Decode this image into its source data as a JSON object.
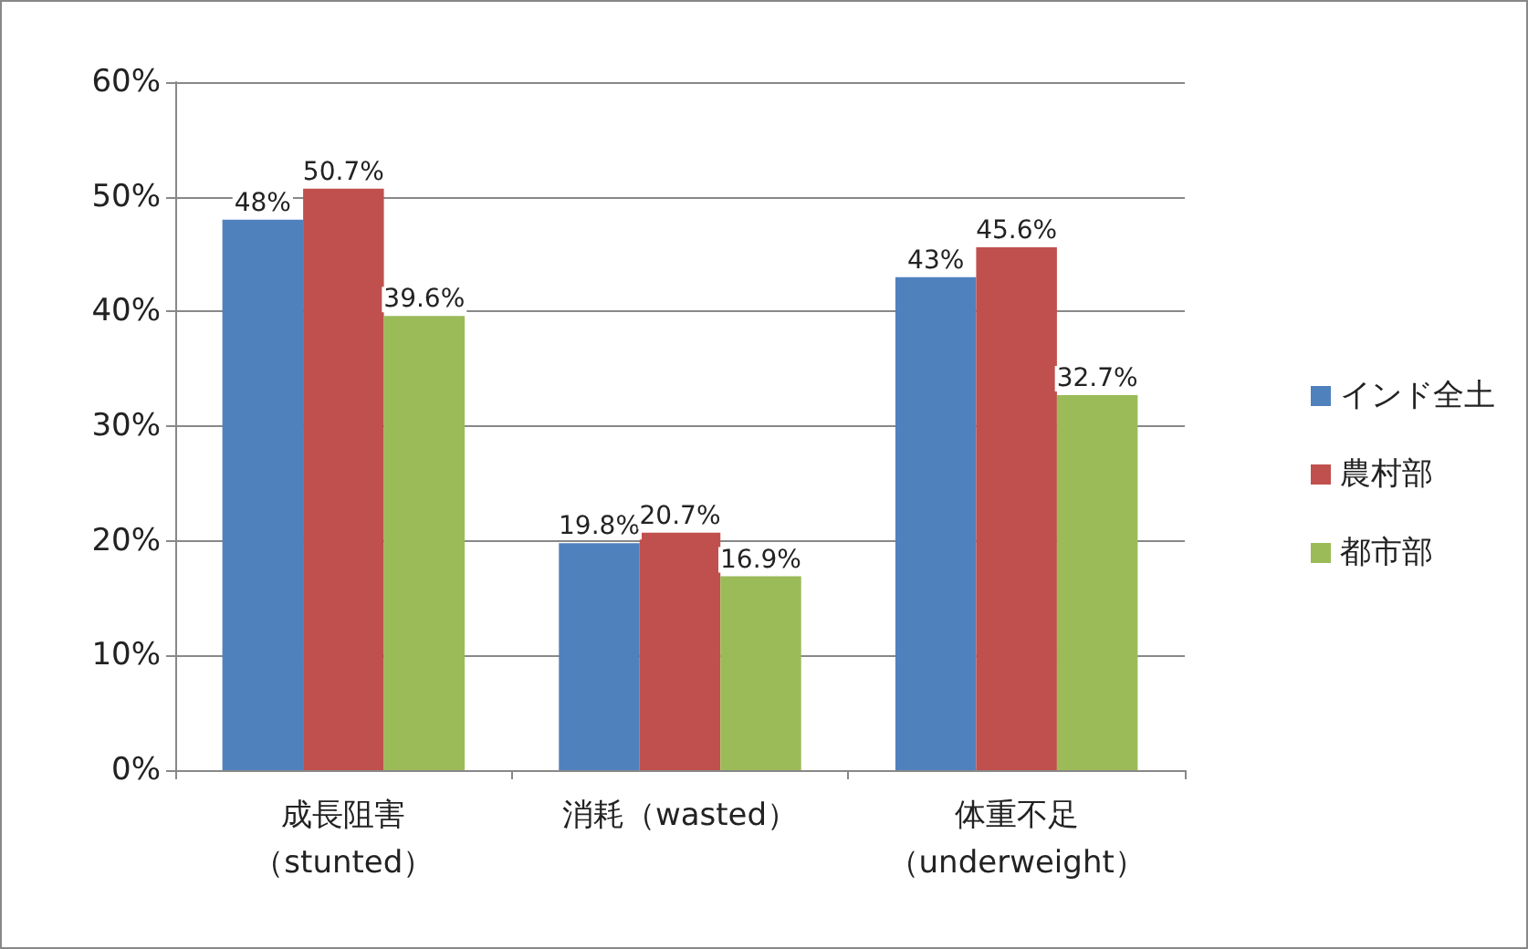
{
  "chart_data": {
    "type": "bar",
    "categories": [
      "成長阻害（stunted）",
      "消耗（wasted）",
      "体重不足（underweight）"
    ],
    "series": [
      {
        "name": "インド全土",
        "color": "#4f81bd",
        "values": [
          48,
          19.8,
          43
        ],
        "value_labels": [
          "48%",
          "19.8%",
          "43%"
        ]
      },
      {
        "name": "農村部",
        "color": "#c0504d",
        "values": [
          50.7,
          20.7,
          45.6
        ],
        "value_labels": [
          "50.7%",
          "20.7%",
          "45.6%"
        ]
      },
      {
        "name": "都市部",
        "color": "#9bbb59",
        "values": [
          39.6,
          16.9,
          32.7
        ],
        "value_labels": [
          "39.6%",
          "16.9%",
          "32.7%"
        ]
      }
    ],
    "ylim": [
      0,
      60
    ],
    "yticks": [
      {
        "value": 0,
        "label": "0%"
      },
      {
        "value": 10,
        "label": "10%"
      },
      {
        "value": 20,
        "label": "20%"
      },
      {
        "value": 30,
        "label": "30%"
      },
      {
        "value": 40,
        "label": "40%"
      },
      {
        "value": 50,
        "label": "50%"
      },
      {
        "value": 60,
        "label": "60%"
      }
    ],
    "grid": "y",
    "legend": "right"
  }
}
